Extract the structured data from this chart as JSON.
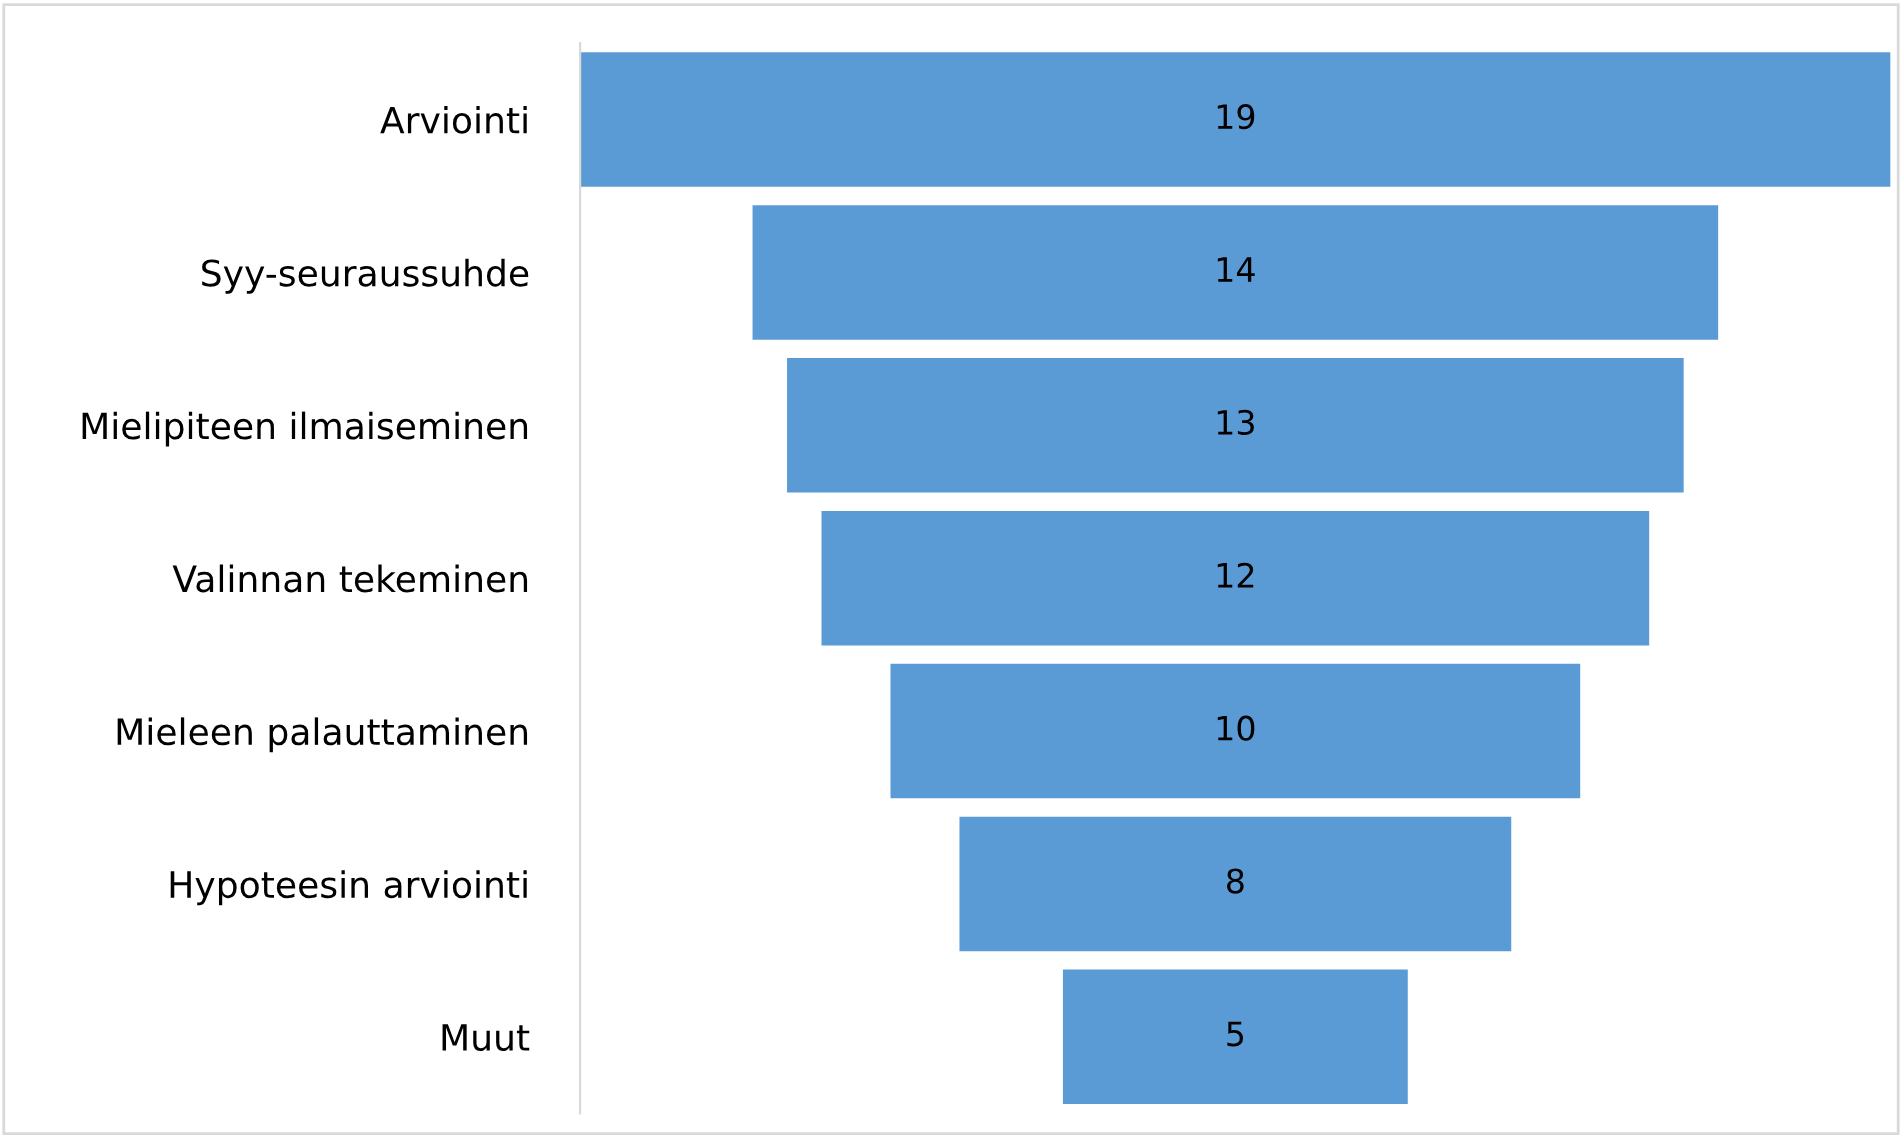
{
  "chart_data": {
    "type": "other",
    "categories": [
      "Arviointi",
      "Syy-seuraussuhde",
      "Mielipiteen ilmaiseminen",
      "Valinnan tekeminen",
      "Mieleen palauttaminen",
      "Hypoteesin arviointi",
      "Muut"
    ],
    "values": [
      19,
      14,
      13,
      12,
      10,
      8,
      5
    ],
    "color": "#5b9bd5",
    "data_labels": true
  }
}
